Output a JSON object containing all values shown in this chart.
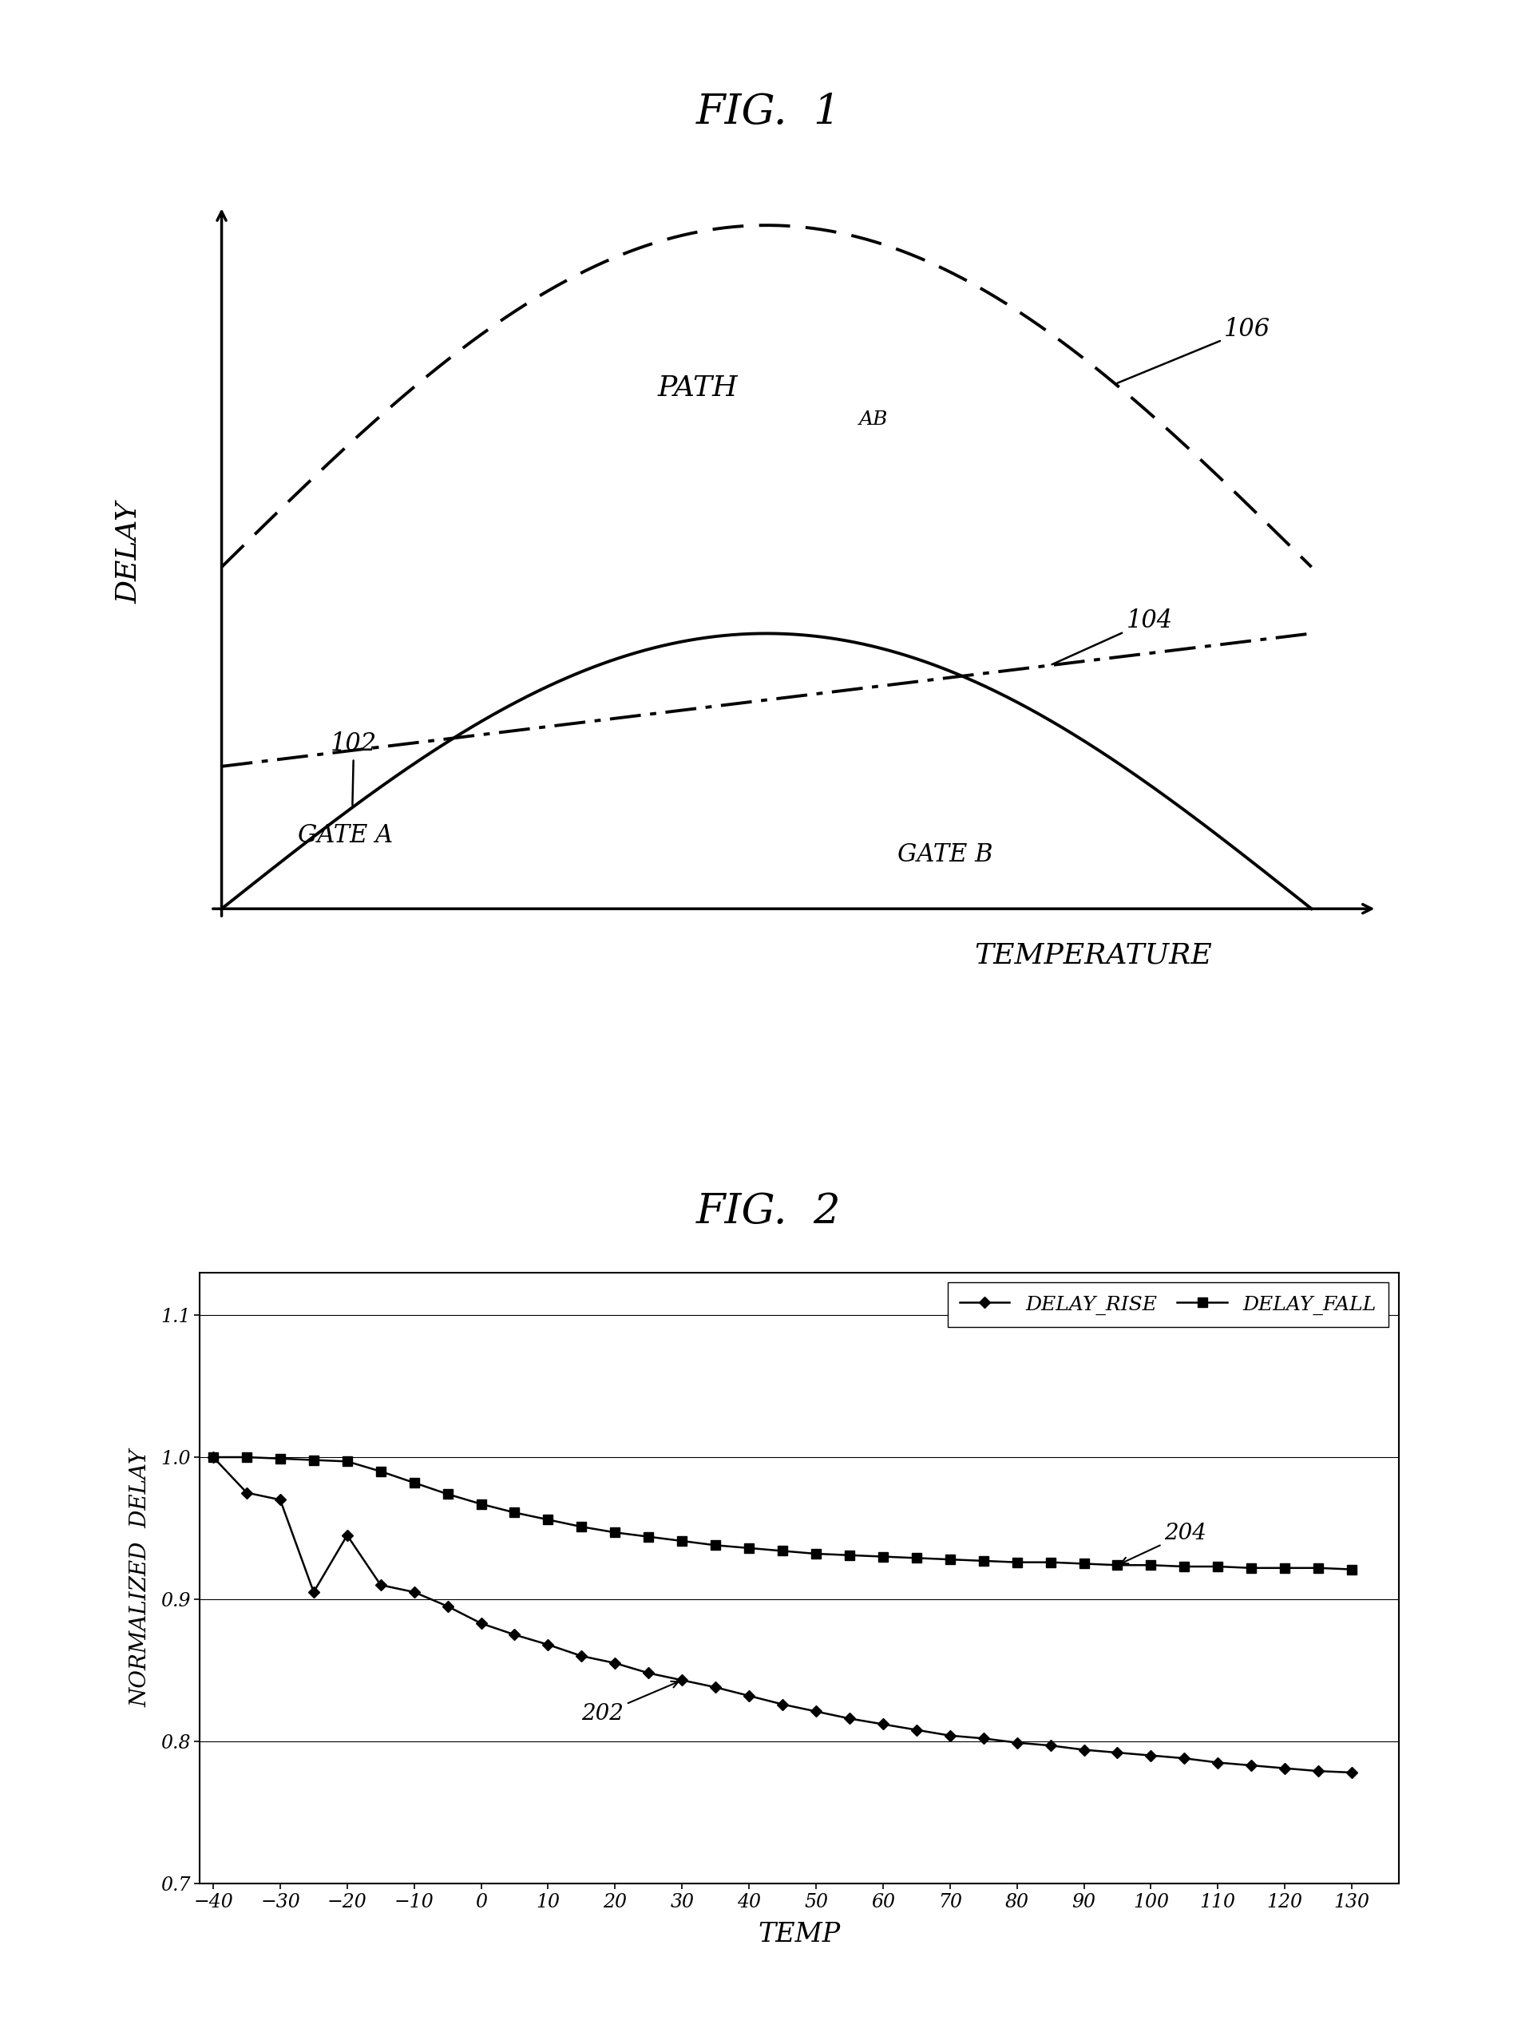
{
  "fig1_title": "FIG.  1",
  "fig2_title": "FIG.  2",
  "fig1_ylabel": "DELAY",
  "fig1_xlabel": "TEMPERATURE",
  "fig2_ylabel": "NORMALIZED  DELAY",
  "fig2_xlabel": "TEMP",
  "fig2_yticks": [
    0.7,
    0.8,
    0.9,
    1.0,
    1.1
  ],
  "fig2_xticks": [
    -40,
    -30,
    -20,
    -10,
    0,
    10,
    20,
    30,
    40,
    50,
    60,
    70,
    80,
    90,
    100,
    110,
    120,
    130
  ],
  "fig2_ylim": [
    0.7,
    1.13
  ],
  "fig2_xlim": [
    -42,
    137
  ],
  "delay_rise": [
    1.0,
    0.975,
    0.97,
    0.905,
    0.945,
    0.91,
    0.905,
    0.895,
    0.883,
    0.875,
    0.868,
    0.86,
    0.855,
    0.848,
    0.843,
    0.838,
    0.832,
    0.826,
    0.821,
    0.816,
    0.812,
    0.808,
    0.804,
    0.802,
    0.799,
    0.797,
    0.794,
    0.792,
    0.79,
    0.788,
    0.785,
    0.783,
    0.781,
    0.779,
    0.778
  ],
  "delay_fall": [
    1.0,
    1.0,
    0.999,
    0.998,
    0.997,
    0.99,
    0.982,
    0.974,
    0.967,
    0.961,
    0.956,
    0.951,
    0.947,
    0.944,
    0.941,
    0.938,
    0.936,
    0.934,
    0.932,
    0.931,
    0.93,
    0.929,
    0.928,
    0.927,
    0.926,
    0.926,
    0.925,
    0.924,
    0.924,
    0.923,
    0.923,
    0.922,
    0.922,
    0.922,
    0.921
  ],
  "temp_values": [
    -40,
    -35,
    -30,
    -25,
    -20,
    -15,
    -10,
    -5,
    0,
    5,
    10,
    15,
    20,
    25,
    30,
    35,
    40,
    45,
    50,
    55,
    60,
    65,
    70,
    75,
    80,
    85,
    90,
    95,
    100,
    105,
    110,
    115,
    120,
    125,
    130
  ],
  "label_rise": "DELAY_RISE",
  "label_fall": "DELAY_FALL",
  "ref_202": "202",
  "ref_204": "204",
  "ref_102": "102",
  "ref_104": "104",
  "ref_106": "106",
  "label_gate_a": "GATE A",
  "label_gate_b": "GATE B",
  "label_path_ab": "PATH",
  "label_path_ab_sub": "AB",
  "line_color": "black",
  "bg_color": "white"
}
